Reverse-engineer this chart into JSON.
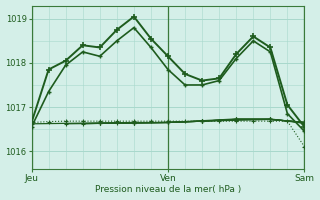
{
  "title": "Pression niveau de la mer( hPa )",
  "bg_color": "#d4efe8",
  "grid_color": "#a8d8cc",
  "line_color": "#1e5c1e",
  "ylim": [
    1015.6,
    1019.3
  ],
  "yticks": [
    1016,
    1017,
    1018,
    1019
  ],
  "xlim": [
    0,
    48
  ],
  "day_labels": [
    [
      "Jeu",
      0
    ],
    [
      "Ven",
      24
    ],
    [
      "Sam",
      48
    ]
  ],
  "series": [
    {
      "x": [
        0,
        3,
        6,
        9,
        12,
        15,
        18,
        21,
        24,
        27,
        30,
        33,
        36,
        39,
        42,
        45,
        48
      ],
      "y": [
        1016.65,
        1017.85,
        1018.05,
        1018.4,
        1018.35,
        1018.75,
        1019.05,
        1018.55,
        1018.15,
        1017.75,
        1017.6,
        1017.65,
        1018.2,
        1018.6,
        1018.35,
        1017.05,
        1016.55
      ],
      "lw": 1.4,
      "marker": "+",
      "ms": 4,
      "mew": 1.2,
      "ls": "-"
    },
    {
      "x": [
        0,
        3,
        6,
        9,
        12,
        15,
        18,
        21,
        24,
        27,
        30,
        33,
        36,
        39,
        42,
        45,
        48
      ],
      "y": [
        1016.55,
        1017.35,
        1017.95,
        1018.25,
        1018.15,
        1018.5,
        1018.8,
        1018.35,
        1017.85,
        1017.5,
        1017.5,
        1017.6,
        1018.1,
        1018.5,
        1018.25,
        1016.85,
        1016.45
      ],
      "lw": 1.2,
      "marker": "+",
      "ms": 3.5,
      "mew": 1.0,
      "ls": "-"
    },
    {
      "x": [
        0,
        3,
        6,
        9,
        12,
        15,
        18,
        21,
        24,
        27,
        30,
        33,
        36,
        39,
        42,
        45,
        48
      ],
      "y": [
        1016.65,
        1016.67,
        1016.68,
        1016.68,
        1016.68,
        1016.68,
        1016.68,
        1016.68,
        1016.68,
        1016.68,
        1016.68,
        1016.68,
        1016.68,
        1016.68,
        1016.68,
        1016.68,
        1016.1
      ],
      "lw": 0.8,
      "marker": "+",
      "ms": 2.5,
      "mew": 0.8,
      "ls": ":"
    },
    {
      "x": [
        0,
        6,
        12,
        18,
        24,
        30,
        36,
        42,
        48
      ],
      "y": [
        1016.62,
        1016.63,
        1016.64,
        1016.65,
        1016.65,
        1016.68,
        1016.7,
        1016.72,
        1016.65
      ],
      "lw": 0.9,
      "marker": "+",
      "ms": 2.5,
      "mew": 0.8,
      "ls": "-"
    },
    {
      "x": [
        6,
        12,
        18,
        24,
        30,
        36,
        42,
        48
      ],
      "y": [
        1016.62,
        1016.63,
        1016.64,
        1016.65,
        1016.68,
        1016.72,
        1016.72,
        1016.65
      ],
      "lw": 0.9,
      "marker": "+",
      "ms": 2.5,
      "mew": 0.8,
      "ls": "-"
    },
    {
      "x": [
        9,
        12,
        18,
        24,
        30,
        36,
        42,
        48
      ],
      "y": [
        1016.62,
        1016.63,
        1016.64,
        1016.65,
        1016.68,
        1016.72,
        1016.72,
        1016.65
      ],
      "lw": 0.9,
      "marker": "+",
      "ms": 2.5,
      "mew": 0.8,
      "ls": "-"
    },
    {
      "x": [
        12,
        18,
        24,
        30,
        36,
        42,
        48
      ],
      "y": [
        1016.63,
        1016.64,
        1016.65,
        1016.68,
        1016.72,
        1016.72,
        1016.65
      ],
      "lw": 0.9,
      "marker": "+",
      "ms": 2.5,
      "mew": 0.8,
      "ls": "-"
    },
    {
      "x": [
        15,
        18,
        24,
        30,
        36,
        42,
        48
      ],
      "y": [
        1016.63,
        1016.64,
        1016.65,
        1016.69,
        1016.73,
        1016.73,
        1016.63
      ],
      "lw": 0.9,
      "marker": "+",
      "ms": 2.5,
      "mew": 0.8,
      "ls": "-"
    }
  ],
  "figsize": [
    3.2,
    2.0
  ],
  "dpi": 100
}
